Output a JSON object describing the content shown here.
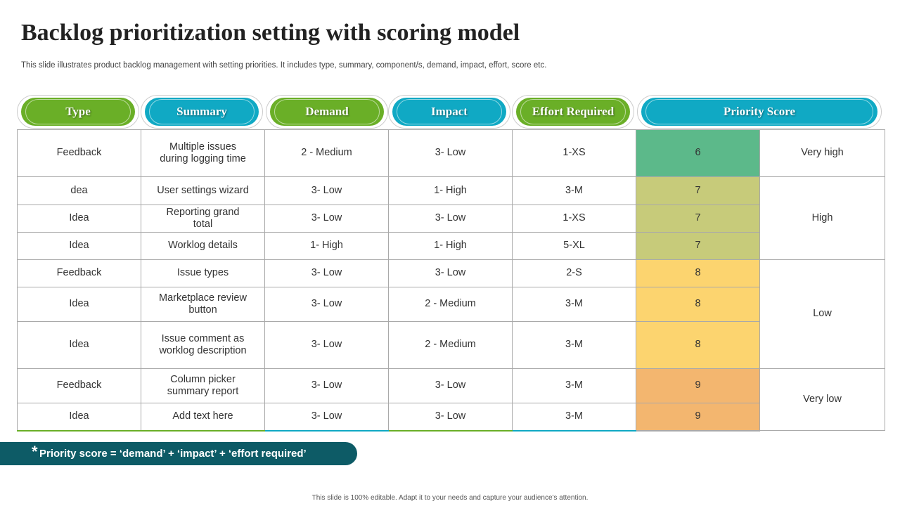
{
  "title": "Backlog prioritization  setting with scoring model",
  "subtitle": "This slide illustrates product backlog management with setting priorities. It includes type, summary, component/s, demand, impact, effort, score etc.",
  "headers": [
    "Type",
    "Summary",
    "Demand",
    "Impact",
    "Effort Required",
    "Priority Score"
  ],
  "colors": {
    "header_green": "#6aaf27",
    "header_blue": "#10a9c4",
    "score_6": "#5cb98a",
    "score_7": "#c7cb7a",
    "score_8": "#fcd46f",
    "score_9": "#f3b66f",
    "footnote_bg": "#0d5b66"
  },
  "rows": [
    {
      "type": "Feedback",
      "summary": "Multiple issues during logging time",
      "demand": "2 - Medium",
      "impact": "3- Low",
      "effort": "1-XS",
      "score": "6"
    },
    {
      "type": "dea",
      "summary": "User settings wizard",
      "demand": "3- Low",
      "impact": "1- High",
      "effort": "3-M",
      "score": "7"
    },
    {
      "type": "Idea",
      "summary": "Reporting grand total",
      "demand": "3- Low",
      "impact": "3- Low",
      "effort": "1-XS",
      "score": "7"
    },
    {
      "type": "Idea",
      "summary": "Worklog details",
      "demand": "1- High",
      "impact": "1- High",
      "effort": "5-XL",
      "score": "7"
    },
    {
      "type": "Feedback",
      "summary": "Issue types",
      "demand": "3- Low",
      "impact": "3- Low",
      "effort": "2-S",
      "score": "8"
    },
    {
      "type": "Idea",
      "summary": "Marketplace review button",
      "demand": "3- Low",
      "impact": "2 - Medium",
      "effort": "3-M",
      "score": "8"
    },
    {
      "type": "Idea",
      "summary": "Issue comment as worklog description",
      "demand": "3- Low",
      "impact": "2 - Medium",
      "effort": "3-M",
      "score": "8"
    },
    {
      "type": "Feedback",
      "summary": "Column picker summary report",
      "demand": "3- Low",
      "impact": "3- Low",
      "effort": "3-M",
      "score": "9"
    },
    {
      "type": "Idea",
      "summary": "Add text here",
      "demand": "3- Low",
      "impact": "3- Low",
      "effort": "3-M",
      "score": "9"
    }
  ],
  "priority_labels": [
    "Very high",
    "High",
    "Low",
    "Very low"
  ],
  "footnote": {
    "star": "*",
    "text": "Priority score = ‘demand’ + ‘impact’ + ‘effort required’"
  },
  "footer": "This slide is 100% editable.  Adapt it to your needs and capture your audience's attention."
}
